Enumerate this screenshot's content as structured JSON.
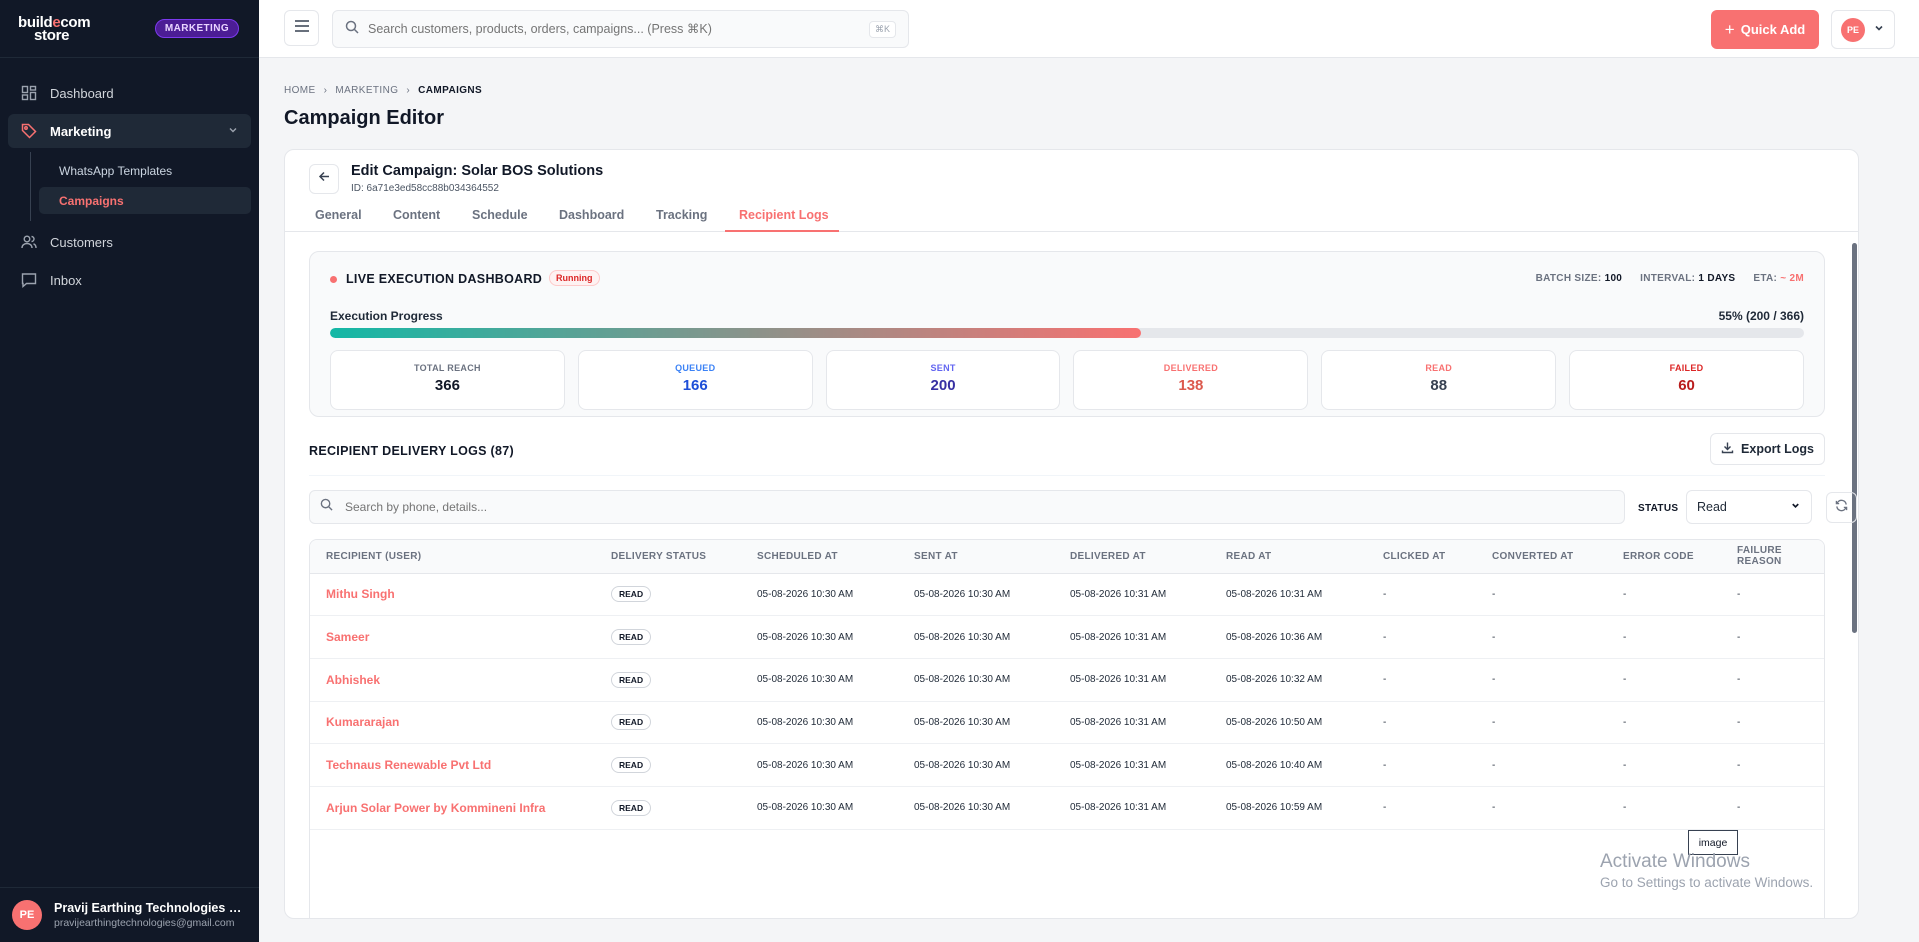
{
  "sidebar": {
    "logo_line1": "build",
    "logo_mid": "e",
    "logo_line1b": "com",
    "logo_line2": "store",
    "section_badge": "MARKETING",
    "items": [
      {
        "label": "Dashboard",
        "icon": "grid-icon"
      },
      {
        "label": "Marketing",
        "icon": "tag-icon"
      },
      {
        "label": "Customers",
        "icon": "users-icon"
      },
      {
        "label": "Inbox",
        "icon": "message-icon"
      }
    ],
    "sub_items": [
      {
        "label": "WhatsApp Templates"
      },
      {
        "label": "Campaigns"
      }
    ],
    "user": {
      "initials": "PE",
      "name": "Pravij Earthing Technologies Pr...",
      "email": "pravijearthingtechnologies@gmail.com"
    }
  },
  "topbar": {
    "search_placeholder": "Search customers, products, orders, campaigns... (Press ⌘K)",
    "kbd": "⌘K",
    "quick_add": "Quick Add",
    "profile_initials": "PE"
  },
  "breadcrumb": [
    "HOME",
    "MARKETING",
    "CAMPAIGNS"
  ],
  "page_title": "Campaign Editor",
  "campaign": {
    "title": "Edit Campaign: Solar BOS Solutions",
    "id": "ID: 6a71e3ed58cc88b034364552"
  },
  "tabs": [
    "General",
    "Content",
    "Schedule",
    "Dashboard",
    "Tracking",
    "Recipient Logs"
  ],
  "active_tab": "Recipient Logs",
  "live": {
    "title": "LIVE EXECUTION DASHBOARD",
    "status": "Running",
    "batch_label": "BATCH SIZE:",
    "batch_value": "100",
    "interval_label": "INTERVAL:",
    "interval_value": "1 DAYS",
    "eta_label": "ETA:",
    "eta_value": "~ 2M",
    "progress_label": "Execution Progress",
    "progress_text": "55% (200 / 366)",
    "progress_fraction": 0.55,
    "stats": [
      {
        "label": "TOTAL REACH",
        "value": "366",
        "color": "#111827",
        "label_color": "#6b7280"
      },
      {
        "label": "QUEUED",
        "value": "166",
        "color": "#1d4ed8",
        "label_color": "#3b82f6"
      },
      {
        "label": "SENT",
        "value": "200",
        "color": "#3730a3",
        "label_color": "#6366f1"
      },
      {
        "label": "DELIVERED",
        "value": "138",
        "color": "#dc5a4e",
        "label_color": "#f87171"
      },
      {
        "label": "READ",
        "value": "88",
        "color": "#374151",
        "label_color": "#f87171"
      },
      {
        "label": "FAILED",
        "value": "60",
        "color": "#b91c1c",
        "label_color": "#dc2626"
      }
    ]
  },
  "logs": {
    "title": "RECIPIENT DELIVERY LOGS (87)",
    "export_label": "Export Logs",
    "search_placeholder": "Search by phone, details...",
    "status_label": "STATUS",
    "status_value": "Read",
    "columns": [
      "RECIPIENT (USER)",
      "DELIVERY STATUS",
      "SCHEDULED AT",
      "SENT AT",
      "DELIVERED AT",
      "READ AT",
      "CLICKED AT",
      "CONVERTED AT",
      "ERROR CODE",
      "FAILURE REASON"
    ],
    "rows": [
      {
        "name": "Mithu Singh",
        "status": "READ",
        "scheduled": "05-08-2026 10:30 AM",
        "sent": "05-08-2026 10:30 AM",
        "delivered": "05-08-2026 10:31 AM",
        "read": "05-08-2026 10:31 AM",
        "clicked": "-",
        "converted": "-",
        "error": "-",
        "reason": "-"
      },
      {
        "name": "Sameer",
        "status": "READ",
        "scheduled": "05-08-2026 10:30 AM",
        "sent": "05-08-2026 10:30 AM",
        "delivered": "05-08-2026 10:31 AM",
        "read": "05-08-2026 10:36 AM",
        "clicked": "-",
        "converted": "-",
        "error": "-",
        "reason": "-"
      },
      {
        "name": "Abhishek",
        "status": "READ",
        "scheduled": "05-08-2026 10:30 AM",
        "sent": "05-08-2026 10:30 AM",
        "delivered": "05-08-2026 10:31 AM",
        "read": "05-08-2026 10:32 AM",
        "clicked": "-",
        "converted": "-",
        "error": "-",
        "reason": "-"
      },
      {
        "name": "Kumararajan",
        "status": "READ",
        "scheduled": "05-08-2026 10:30 AM",
        "sent": "05-08-2026 10:30 AM",
        "delivered": "05-08-2026 10:31 AM",
        "read": "05-08-2026 10:50 AM",
        "clicked": "-",
        "converted": "-",
        "error": "-",
        "reason": "-"
      },
      {
        "name": "Technaus Renewable Pvt Ltd",
        "status": "READ",
        "scheduled": "05-08-2026 10:30 AM",
        "sent": "05-08-2026 10:30 AM",
        "delivered": "05-08-2026 10:31 AM",
        "read": "05-08-2026 10:40 AM",
        "clicked": "-",
        "converted": "-",
        "error": "-",
        "reason": "-"
      },
      {
        "name": "Arjun Solar Power by Kommineni Infra",
        "status": "READ",
        "scheduled": "05-08-2026 10:30 AM",
        "sent": "05-08-2026 10:30 AM",
        "delivered": "05-08-2026 10:31 AM",
        "read": "05-08-2026 10:59 AM",
        "clicked": "-",
        "converted": "-",
        "error": "-",
        "reason": "-"
      }
    ]
  },
  "tooltip": "image",
  "watermark": {
    "line1": "Activate Windows",
    "line2": "Go to Settings to activate Windows."
  }
}
